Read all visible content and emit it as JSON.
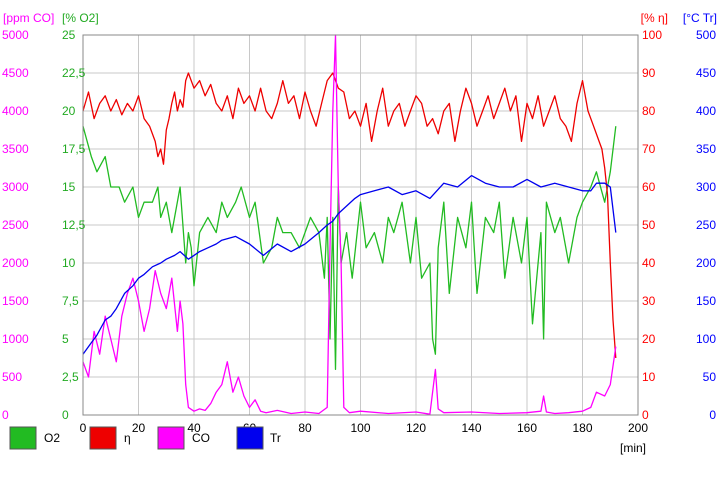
{
  "chart_data": {
    "type": "line",
    "x_unit_label": "[min]",
    "x_ticks": [
      0,
      20,
      40,
      60,
      80,
      100,
      120,
      140,
      160,
      180,
      200
    ],
    "xlim": [
      0,
      200
    ],
    "grid": true,
    "legend_placement": "bottom",
    "axes": [
      {
        "id": "co",
        "label": "[ppm CO]",
        "color": "#ff00ff",
        "side": "left",
        "range": [
          0,
          5000
        ],
        "ticks": [
          "0",
          "500",
          "1000",
          "1500",
          "2000",
          "2500",
          "3000",
          "3500",
          "4000",
          "4500",
          "5000"
        ]
      },
      {
        "id": "o2",
        "label": "[% O2]",
        "color": "#22aa22",
        "side": "left",
        "range": [
          0,
          25
        ],
        "ticks": [
          "0",
          "2,5",
          "5",
          "7,5",
          "10",
          "12,5",
          "15",
          "17,5",
          "20",
          "22,5",
          "25"
        ]
      },
      {
        "id": "eta",
        "label": "[% η]",
        "color": "#ff0000",
        "side": "right",
        "range": [
          0,
          100
        ],
        "ticks": [
          "0",
          "10",
          "20",
          "30",
          "40",
          "50",
          "60",
          "70",
          "80",
          "90",
          "100"
        ]
      },
      {
        "id": "tr",
        "label": "[°C Tr]",
        "color": "#0000ff",
        "side": "right",
        "range": [
          0,
          500
        ],
        "ticks": [
          "0",
          "50",
          "100",
          "150",
          "200",
          "250",
          "300",
          "350",
          "400",
          "450",
          "500"
        ]
      }
    ],
    "series": [
      {
        "name": "O2",
        "axis": "o2",
        "color": "#22bb22",
        "x": [
          0,
          3,
          5,
          8,
          10,
          13,
          15,
          18,
          20,
          22,
          25,
          27,
          28,
          30,
          32,
          35,
          37,
          38,
          39,
          40,
          42,
          45,
          48,
          50,
          52,
          55,
          57,
          60,
          62,
          65,
          68,
          70,
          72,
          75,
          78,
          80,
          82,
          85,
          87,
          88,
          89,
          90,
          91,
          92,
          93,
          95,
          97,
          100,
          102,
          105,
          108,
          110,
          112,
          115,
          118,
          120,
          122,
          125,
          126,
          127,
          128,
          130,
          132,
          135,
          138,
          140,
          142,
          145,
          148,
          150,
          152,
          155,
          158,
          160,
          162,
          165,
          166,
          167,
          170,
          172,
          175,
          178,
          180,
          183,
          185,
          188,
          190,
          192
        ],
        "y": [
          19,
          17,
          16,
          17,
          15,
          15,
          14,
          15,
          13,
          14,
          14,
          15,
          13,
          14,
          12,
          15,
          10,
          12,
          11,
          8.5,
          12,
          13,
          12,
          14,
          13,
          14,
          15,
          13,
          14,
          10,
          11,
          13,
          12,
          12,
          11,
          12,
          13,
          12,
          9,
          13,
          5,
          13,
          3,
          15,
          10,
          12,
          9,
          14,
          11,
          12,
          10,
          13,
          12,
          14,
          10,
          13,
          9,
          10,
          5,
          4,
          11,
          14,
          8,
          13,
          11,
          14,
          8,
          13,
          12,
          14,
          9,
          13,
          10,
          13,
          6,
          12,
          5,
          14,
          12,
          13,
          10,
          13,
          14,
          15,
          16,
          14,
          16,
          19
        ]
      },
      {
        "name": "η",
        "axis": "eta",
        "color": "#ee0000",
        "x": [
          0,
          2,
          4,
          6,
          8,
          10,
          12,
          14,
          16,
          18,
          20,
          22,
          24,
          26,
          27,
          28,
          29,
          30,
          31,
          32,
          33,
          34,
          35,
          36,
          37,
          38,
          40,
          42,
          44,
          46,
          48,
          50,
          52,
          54,
          56,
          58,
          60,
          62,
          64,
          66,
          68,
          70,
          72,
          74,
          76,
          78,
          80,
          82,
          84,
          86,
          88,
          90,
          92,
          94,
          96,
          98,
          100,
          102,
          104,
          106,
          108,
          110,
          112,
          114,
          116,
          118,
          120,
          122,
          124,
          126,
          128,
          130,
          132,
          134,
          136,
          138,
          140,
          142,
          144,
          146,
          148,
          150,
          152,
          154,
          156,
          158,
          160,
          162,
          164,
          166,
          168,
          170,
          172,
          174,
          176,
          178,
          180,
          182,
          184,
          186,
          187,
          188,
          189,
          190,
          191,
          192
        ],
        "y": [
          80,
          85,
          78,
          82,
          84,
          80,
          83,
          79,
          82,
          80,
          84,
          78,
          76,
          72,
          68,
          70,
          66,
          75,
          78,
          82,
          85,
          80,
          83,
          81,
          88,
          90,
          86,
          88,
          84,
          87,
          82,
          80,
          84,
          78,
          86,
          82,
          84,
          80,
          86,
          80,
          78,
          82,
          88,
          82,
          84,
          78,
          85,
          80,
          76,
          82,
          88,
          90,
          86,
          85,
          78,
          80,
          76,
          82,
          72,
          80,
          86,
          76,
          80,
          82,
          76,
          80,
          84,
          82,
          76,
          78,
          74,
          80,
          82,
          72,
          80,
          86,
          82,
          76,
          80,
          84,
          78,
          82,
          86,
          80,
          84,
          72,
          82,
          78,
          84,
          76,
          80,
          84,
          78,
          76,
          72,
          82,
          88,
          80,
          76,
          72,
          70,
          65,
          58,
          40,
          25,
          15
        ]
      },
      {
        "name": "CO",
        "axis": "co",
        "color": "#ff00ff",
        "x": [
          0,
          2,
          4,
          6,
          8,
          10,
          12,
          14,
          16,
          18,
          20,
          22,
          24,
          26,
          28,
          30,
          32,
          34,
          35,
          36,
          37,
          38,
          40,
          42,
          44,
          46,
          48,
          50,
          52,
          54,
          56,
          58,
          60,
          62,
          64,
          66,
          70,
          75,
          80,
          85,
          88,
          89,
          90,
          91,
          92,
          93,
          94,
          96,
          100,
          110,
          120,
          125,
          126,
          127,
          128,
          130,
          140,
          150,
          160,
          165,
          166,
          167,
          170,
          175,
          180,
          183,
          185,
          188,
          190,
          192
        ],
        "y": [
          700,
          500,
          1100,
          800,
          1300,
          1000,
          700,
          1300,
          1600,
          1800,
          1500,
          1100,
          1400,
          1900,
          1600,
          1400,
          1800,
          1100,
          1500,
          1200,
          400,
          100,
          50,
          80,
          60,
          150,
          300,
          400,
          700,
          300,
          500,
          250,
          100,
          200,
          50,
          30,
          60,
          20,
          40,
          20,
          100,
          2200,
          4000,
          5000,
          3000,
          2000,
          100,
          30,
          50,
          20,
          40,
          10,
          300,
          600,
          80,
          30,
          40,
          20,
          30,
          50,
          250,
          40,
          20,
          30,
          50,
          100,
          300,
          250,
          400,
          900
        ]
      },
      {
        "name": "Tr",
        "axis": "tr",
        "color": "#0000ee",
        "x": [
          0,
          3,
          5,
          8,
          10,
          12,
          15,
          18,
          20,
          22,
          25,
          28,
          30,
          33,
          35,
          38,
          40,
          42,
          45,
          48,
          50,
          55,
          60,
          65,
          70,
          75,
          80,
          85,
          88,
          90,
          92,
          95,
          98,
          100,
          105,
          110,
          115,
          120,
          125,
          130,
          135,
          140,
          145,
          150,
          155,
          160,
          165,
          170,
          175,
          180,
          183,
          185,
          188,
          190,
          192
        ],
        "y": [
          80,
          95,
          105,
          125,
          130,
          140,
          160,
          170,
          180,
          185,
          195,
          200,
          205,
          210,
          215,
          205,
          210,
          215,
          220,
          225,
          230,
          235,
          225,
          210,
          225,
          215,
          225,
          240,
          250,
          255,
          265,
          275,
          285,
          290,
          295,
          300,
          290,
          295,
          285,
          305,
          300,
          315,
          305,
          300,
          300,
          310,
          300,
          305,
          300,
          295,
          295,
          305,
          305,
          300,
          240
        ]
      }
    ]
  },
  "legend": [
    {
      "name": "O2",
      "color": "#22bb22"
    },
    {
      "name": "η",
      "color": "#ee0000"
    },
    {
      "name": "CO",
      "color": "#ff00ff"
    },
    {
      "name": "Tr",
      "color": "#0000ee"
    }
  ]
}
